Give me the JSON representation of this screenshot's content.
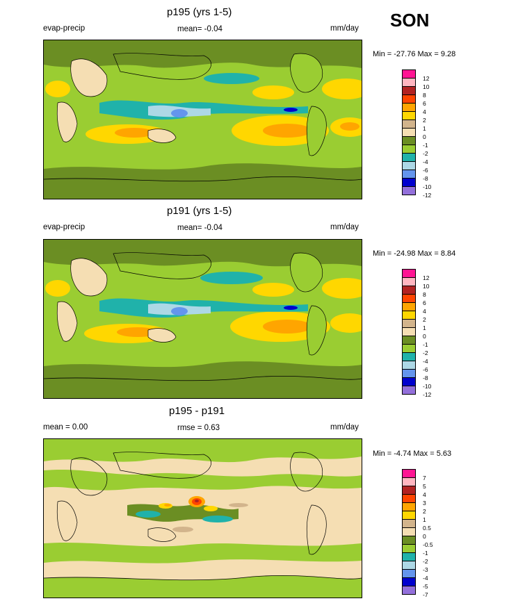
{
  "season": "SON",
  "panels": [
    {
      "id": "p195",
      "title": "p195 (yrs 1-5)",
      "left_label": "evap-precip",
      "center_label": "mean=  -0.04",
      "units": "mm/day",
      "minmax": "Min = -27.76 Max =   9.28",
      "legend_levels": [
        "12",
        "10",
        "8",
        "6",
        "4",
        "2",
        "1",
        "0",
        "-1",
        "-2",
        "-4",
        "-6",
        "-8",
        "-10",
        "-12"
      ],
      "legend_colors": [
        "#ff1493",
        "#ffb6c1",
        "#b22222",
        "#ff4500",
        "#ffa500",
        "#ffd700",
        "#d2b48c",
        "#f5deb3",
        "#6b8e23",
        "#9acd32",
        "#20b2aa",
        "#add8e6",
        "#6495ed",
        "#0000cd",
        "#9370db"
      ]
    },
    {
      "id": "p191",
      "title": "p191 (yrs 1-5)",
      "left_label": "evap-precip",
      "center_label": "mean=  -0.04",
      "units": "mm/day",
      "minmax": "Min = -24.98 Max =   8.84",
      "legend_levels": [
        "12",
        "10",
        "8",
        "6",
        "4",
        "2",
        "1",
        "0",
        "-1",
        "-2",
        "-4",
        "-6",
        "-8",
        "-10",
        "-12"
      ],
      "legend_colors": [
        "#ff1493",
        "#ffb6c1",
        "#b22222",
        "#ff4500",
        "#ffa500",
        "#ffd700",
        "#d2b48c",
        "#f5deb3",
        "#6b8e23",
        "#9acd32",
        "#20b2aa",
        "#add8e6",
        "#6495ed",
        "#0000cd",
        "#9370db"
      ]
    },
    {
      "id": "diff",
      "title": "p195 - p191",
      "left_label": "mean =   0.00",
      "center_label": "rmse =   0.63",
      "units": "mm/day",
      "minmax": "Min =  -4.74 Max =   5.63",
      "legend_levels": [
        "7",
        "5",
        "4",
        "3",
        "2",
        "1",
        "0.5",
        "0",
        "-0.5",
        "-1",
        "-2",
        "-3",
        "-4",
        "-5",
        "-7"
      ],
      "legend_colors": [
        "#ff1493",
        "#ffb6c1",
        "#b22222",
        "#ff4500",
        "#ffa500",
        "#ffd700",
        "#d2b48c",
        "#f5deb3",
        "#6b8e23",
        "#9acd32",
        "#20b2aa",
        "#add8e6",
        "#6495ed",
        "#0000cd",
        "#9370db"
      ]
    }
  ]
}
